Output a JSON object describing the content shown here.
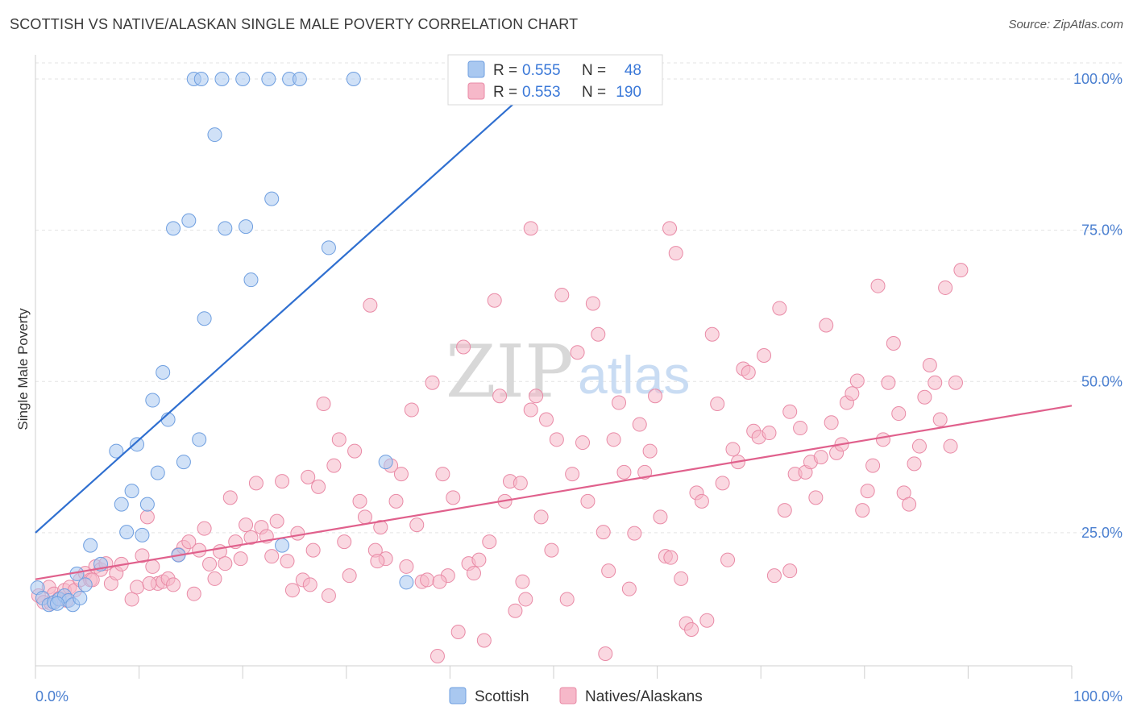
{
  "header": {
    "title": "SCOTTISH VS NATIVE/ALASKAN SINGLE MALE POVERTY CORRELATION CHART",
    "source": "Source: ZipAtlas.com"
  },
  "watermark": {
    "part1": "ZIP",
    "part2": "atlas"
  },
  "legend": {
    "r_label": "R =",
    "n_label": "N =",
    "rows": [
      {
        "r": "0.555",
        "n": "48",
        "color": "#a9c8f0"
      },
      {
        "r": "0.553",
        "n": "190",
        "color": "#f6b8c9"
      }
    ]
  },
  "bottom_legend": [
    {
      "label": "Scottish",
      "color": "#a9c8f0"
    },
    {
      "label": "Natives/Alaskans",
      "color": "#f6b8c9"
    }
  ],
  "chart_data": {
    "type": "scatter",
    "title": "SCOTTISH VS NATIVE/ALASKAN SINGLE MALE POVERTY CORRELATION CHART",
    "xlabel": "",
    "ylabel": "Single Male Poverty",
    "xlim": [
      0,
      100
    ],
    "ylim": [
      3,
      104
    ],
    "x_tick_labels": [
      "0.0%",
      "100.0%"
    ],
    "y_ticks": [
      25,
      50,
      75,
      100
    ],
    "y_tick_labels": [
      "25.0%",
      "50.0%",
      "75.0%",
      "100.0%"
    ],
    "grid": true,
    "legend_position": "top-center",
    "series": [
      {
        "name": "Scottish",
        "color": "#a9c8f0",
        "stroke": "#6f9fe0",
        "line_color": "#2f6fd0",
        "trend": {
          "x": [
            0,
            48.8
          ],
          "y": [
            25,
            100
          ]
        },
        "points": [
          [
            0.2,
            15.9
          ],
          [
            0.7,
            14.2
          ],
          [
            1.3,
            13.1
          ],
          [
            1.8,
            13.5
          ],
          [
            2.3,
            14.0
          ],
          [
            2.8,
            14.6
          ],
          [
            3.2,
            13.8
          ],
          [
            3.6,
            13.1
          ],
          [
            4.3,
            14.2
          ],
          [
            4.8,
            16.4
          ],
          [
            5.3,
            22.9
          ],
          [
            6.3,
            19.8
          ],
          [
            7.8,
            38.5
          ],
          [
            8.3,
            29.7
          ],
          [
            8.8,
            25.1
          ],
          [
            9.3,
            31.9
          ],
          [
            9.8,
            39.6
          ],
          [
            10.3,
            24.6
          ],
          [
            10.8,
            29.7
          ],
          [
            11.3,
            46.9
          ],
          [
            11.8,
            34.9
          ],
          [
            12.3,
            51.5
          ],
          [
            12.8,
            43.7
          ],
          [
            13.3,
            75.3
          ],
          [
            13.8,
            21.3
          ],
          [
            14.3,
            36.7
          ],
          [
            14.8,
            76.6
          ],
          [
            15.8,
            40.4
          ],
          [
            16.3,
            60.4
          ],
          [
            17.3,
            90.8
          ],
          [
            18.3,
            75.3
          ],
          [
            20.3,
            75.6
          ],
          [
            20.8,
            66.8
          ],
          [
            22.8,
            80.2
          ],
          [
            23.8,
            22.9
          ],
          [
            28.3,
            72.1
          ],
          [
            33.8,
            36.7
          ],
          [
            35.8,
            16.8
          ],
          [
            15.3,
            100
          ],
          [
            16.0,
            100
          ],
          [
            18.0,
            100
          ],
          [
            20.0,
            100
          ],
          [
            22.5,
            100
          ],
          [
            24.5,
            100
          ],
          [
            25.5,
            100
          ],
          [
            30.7,
            100
          ],
          [
            4.0,
            18.2
          ],
          [
            2.1,
            13.3
          ]
        ]
      },
      {
        "name": "Natives/Alaskans",
        "color": "#f6b8c9",
        "stroke": "#e98aa6",
        "line_color": "#e0608c",
        "trend": {
          "x": [
            0,
            100
          ],
          "y": [
            17.3,
            46
          ]
        },
        "points": [
          [
            0.3,
            14.6
          ],
          [
            0.8,
            13.5
          ],
          [
            1.3,
            16.0
          ],
          [
            1.8,
            14.9
          ],
          [
            2.3,
            14.2
          ],
          [
            2.8,
            15.5
          ],
          [
            3.3,
            16.0
          ],
          [
            3.8,
            15.5
          ],
          [
            4.3,
            17.2
          ],
          [
            4.8,
            18.3
          ],
          [
            5.3,
            17.2
          ],
          [
            5.8,
            19.4
          ],
          [
            6.3,
            18.9
          ],
          [
            6.8,
            19.9
          ],
          [
            7.3,
            16.6
          ],
          [
            7.8,
            18.3
          ],
          [
            8.3,
            19.8
          ],
          [
            9.3,
            14.0
          ],
          [
            9.8,
            16.0
          ],
          [
            10.3,
            21.2
          ],
          [
            10.8,
            27.6
          ],
          [
            11.3,
            19.4
          ],
          [
            11.8,
            16.6
          ],
          [
            12.3,
            16.9
          ],
          [
            12.8,
            17.4
          ],
          [
            13.3,
            16.4
          ],
          [
            13.8,
            21.4
          ],
          [
            14.3,
            22.6
          ],
          [
            14.8,
            23.5
          ],
          [
            15.3,
            14.9
          ],
          [
            15.8,
            22.1
          ],
          [
            16.3,
            25.7
          ],
          [
            16.8,
            19.8
          ],
          [
            17.3,
            17.4
          ],
          [
            17.8,
            21.9
          ],
          [
            18.3,
            19.9
          ],
          [
            18.8,
            30.8
          ],
          [
            19.3,
            23.5
          ],
          [
            19.8,
            20.7
          ],
          [
            20.3,
            26.3
          ],
          [
            20.8,
            24.2
          ],
          [
            21.3,
            33.2
          ],
          [
            21.8,
            25.9
          ],
          [
            22.3,
            24.4
          ],
          [
            22.8,
            21.1
          ],
          [
            23.3,
            26.9
          ],
          [
            23.8,
            33.5
          ],
          [
            24.3,
            20.3
          ],
          [
            24.8,
            15.5
          ],
          [
            25.3,
            24.9
          ],
          [
            25.8,
            17.2
          ],
          [
            26.3,
            34.2
          ],
          [
            26.8,
            22.1
          ],
          [
            27.3,
            32.6
          ],
          [
            27.8,
            46.3
          ],
          [
            28.3,
            14.6
          ],
          [
            28.8,
            36.1
          ],
          [
            29.3,
            40.4
          ],
          [
            29.8,
            23.5
          ],
          [
            30.3,
            17.9
          ],
          [
            30.8,
            38.5
          ],
          [
            31.3,
            30.2
          ],
          [
            31.8,
            27.6
          ],
          [
            32.3,
            62.6
          ],
          [
            32.8,
            22.1
          ],
          [
            33.3,
            25.9
          ],
          [
            33.8,
            20.7
          ],
          [
            34.3,
            36.1
          ],
          [
            34.8,
            30.2
          ],
          [
            35.3,
            34.7
          ],
          [
            35.8,
            19.4
          ],
          [
            36.3,
            45.3
          ],
          [
            36.8,
            26.3
          ],
          [
            37.3,
            16.9
          ],
          [
            37.8,
            17.2
          ],
          [
            38.3,
            49.8
          ],
          [
            38.8,
            4.6
          ],
          [
            39.3,
            34.7
          ],
          [
            39.8,
            17.9
          ],
          [
            40.3,
            30.8
          ],
          [
            40.8,
            8.6
          ],
          [
            41.3,
            55.7
          ],
          [
            41.8,
            19.9
          ],
          [
            42.3,
            18.3
          ],
          [
            42.8,
            20.5
          ],
          [
            43.3,
            7.2
          ],
          [
            43.8,
            23.5
          ],
          [
            44.3,
            63.4
          ],
          [
            44.8,
            47.6
          ],
          [
            45.3,
            30.2
          ],
          [
            45.8,
            33.5
          ],
          [
            46.3,
            12.1
          ],
          [
            46.8,
            33.2
          ],
          [
            47.3,
            14.0
          ],
          [
            47.8,
            45.3
          ],
          [
            48.3,
            47.6
          ],
          [
            48.8,
            27.6
          ],
          [
            49.3,
            43.7
          ],
          [
            49.8,
            22.1
          ],
          [
            50.3,
            40.4
          ],
          [
            50.8,
            64.3
          ],
          [
            51.3,
            14.0
          ],
          [
            51.8,
            34.7
          ],
          [
            52.3,
            54.8
          ],
          [
            52.8,
            39.9
          ],
          [
            53.3,
            30.2
          ],
          [
            53.8,
            62.9
          ],
          [
            54.3,
            57.8
          ],
          [
            54.8,
            25.1
          ],
          [
            55.3,
            18.7
          ],
          [
            55.8,
            40.4
          ],
          [
            56.3,
            46.5
          ],
          [
            56.8,
            35.0
          ],
          [
            57.3,
            15.7
          ],
          [
            57.8,
            24.9
          ],
          [
            58.3,
            42.9
          ],
          [
            58.8,
            35.0
          ],
          [
            59.3,
            38.5
          ],
          [
            59.8,
            47.6
          ],
          [
            60.3,
            27.6
          ],
          [
            60.8,
            21.1
          ],
          [
            61.3,
            20.9
          ],
          [
            61.8,
            71.2
          ],
          [
            62.3,
            17.4
          ],
          [
            62.8,
            10.0
          ],
          [
            63.3,
            9.0
          ],
          [
            63.8,
            31.6
          ],
          [
            64.3,
            30.2
          ],
          [
            64.8,
            10.5
          ],
          [
            65.3,
            57.8
          ],
          [
            65.8,
            46.3
          ],
          [
            66.3,
            33.2
          ],
          [
            66.8,
            20.5
          ],
          [
            67.3,
            38.8
          ],
          [
            67.8,
            36.7
          ],
          [
            68.3,
            52.1
          ],
          [
            68.8,
            51.5
          ],
          [
            69.3,
            41.8
          ],
          [
            69.8,
            40.8
          ],
          [
            70.3,
            54.3
          ],
          [
            70.8,
            41.5
          ],
          [
            71.3,
            17.9
          ],
          [
            71.8,
            62.1
          ],
          [
            72.3,
            28.7
          ],
          [
            72.8,
            45.0
          ],
          [
            73.3,
            34.7
          ],
          [
            73.8,
            42.3
          ],
          [
            74.3,
            35.0
          ],
          [
            74.8,
            36.7
          ],
          [
            75.3,
            30.8
          ],
          [
            75.8,
            37.5
          ],
          [
            76.3,
            59.3
          ],
          [
            76.8,
            43.2
          ],
          [
            77.3,
            38.2
          ],
          [
            77.8,
            39.6
          ],
          [
            78.3,
            46.5
          ],
          [
            78.8,
            48.0
          ],
          [
            79.3,
            50.1
          ],
          [
            79.8,
            28.7
          ],
          [
            80.3,
            31.9
          ],
          [
            80.8,
            36.1
          ],
          [
            81.3,
            65.8
          ],
          [
            81.8,
            40.4
          ],
          [
            82.3,
            49.8
          ],
          [
            82.8,
            56.3
          ],
          [
            83.3,
            44.7
          ],
          [
            83.8,
            31.6
          ],
          [
            84.3,
            29.7
          ],
          [
            84.8,
            36.4
          ],
          [
            85.3,
            39.3
          ],
          [
            85.8,
            47.4
          ],
          [
            86.3,
            52.7
          ],
          [
            86.8,
            49.8
          ],
          [
            87.3,
            43.7
          ],
          [
            87.8,
            65.5
          ],
          [
            88.3,
            39.3
          ],
          [
            88.8,
            49.8
          ],
          [
            89.3,
            68.4
          ],
          [
            47.0,
            16.9
          ],
          [
            39.0,
            16.9
          ],
          [
            33.0,
            20.3
          ],
          [
            26.5,
            16.4
          ],
          [
            11.0,
            16.6
          ],
          [
            5.5,
            17.2
          ],
          [
            3.0,
            13.8
          ],
          [
            1.5,
            13.3
          ],
          [
            61.2,
            75.3
          ],
          [
            72.8,
            18.7
          ],
          [
            47.8,
            75.3
          ],
          [
            55.0,
            5.0
          ]
        ]
      }
    ]
  }
}
